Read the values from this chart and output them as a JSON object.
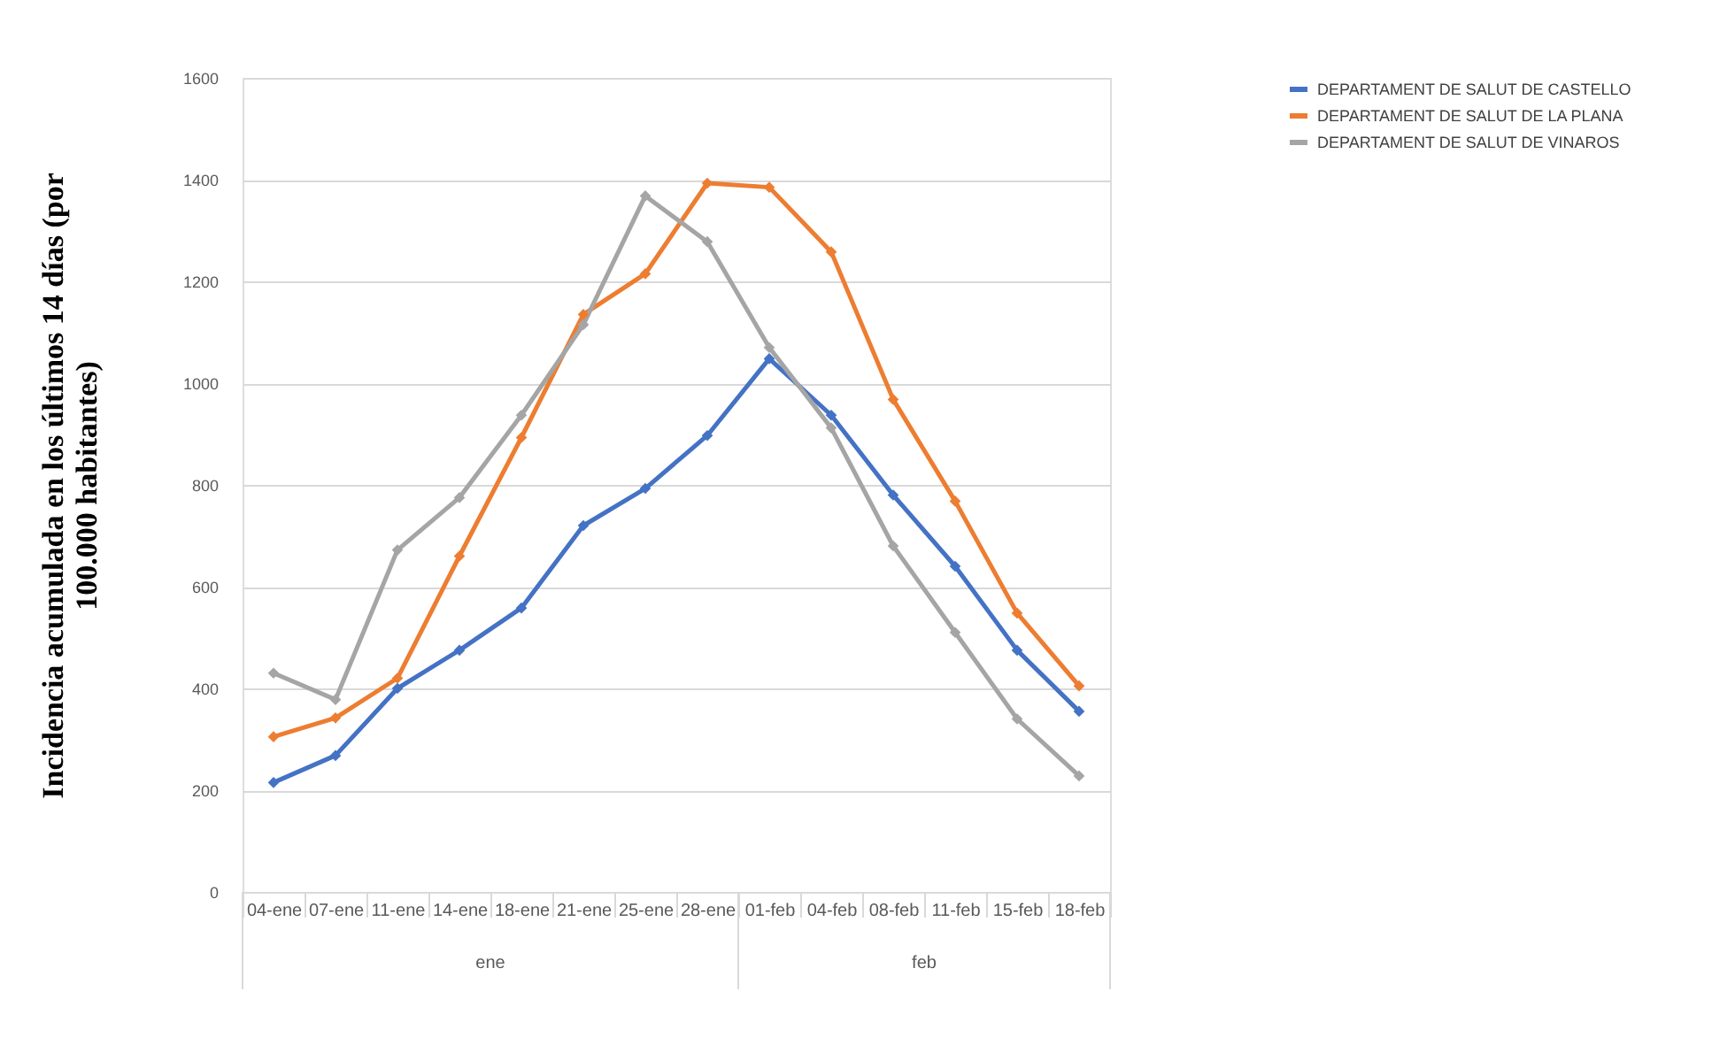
{
  "chart_data": {
    "type": "line",
    "ylabel": "Incidencia acumulada  en los últimos 14 días (por 100.000 habitantes)",
    "categories": [
      "04-ene",
      "07-ene",
      "11-ene",
      "14-ene",
      "18-ene",
      "21-ene",
      "25-ene",
      "28-ene",
      "01-feb",
      "04-feb",
      "08-feb",
      "11-feb",
      "15-feb",
      "18-feb"
    ],
    "series": [
      {
        "name": "DEPARTAMENT DE SALUT DE CASTELLO",
        "color": "#4472c4",
        "values": [
          215,
          268,
          400,
          475,
          558,
          720,
          793,
          897,
          1048,
          937,
          780,
          640,
          475,
          355
        ]
      },
      {
        "name": "DEPARTAMENT DE SALUT DE LA PLANA",
        "color": "#ed7d31",
        "values": [
          305,
          342,
          420,
          660,
          893,
          1135,
          1215,
          1393,
          1385,
          1258,
          968,
          768,
          548,
          405
        ]
      },
      {
        "name": "DEPARTAMENT DE SALUT DE VINAROS",
        "color": "#a5a5a5",
        "values": [
          430,
          378,
          672,
          775,
          937,
          1115,
          1368,
          1278,
          1070,
          912,
          680,
          510,
          340,
          228
        ]
      }
    ],
    "ylim": [
      0,
      1600
    ],
    "yticks": [
      0,
      200,
      400,
      600,
      800,
      1000,
      1200,
      1400,
      1600
    ],
    "annotations": [
      "ene",
      "feb"
    ],
    "grid": "y",
    "legend": "right",
    "marker": "diamond",
    "line_style": "solid"
  }
}
